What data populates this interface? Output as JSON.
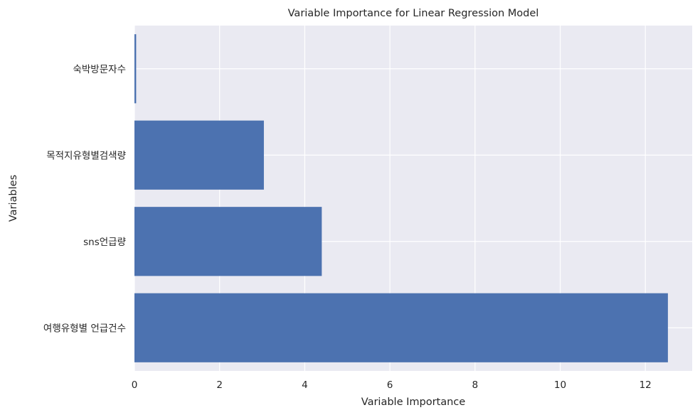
{
  "chart_data": {
    "type": "bar",
    "orientation": "horizontal",
    "title": "Variable Importance for Linear Regression Model",
    "xlabel": "Variable Importance",
    "ylabel": "Variables",
    "categories": [
      "여행유형별 언급건수",
      "sns언급량",
      "목적지유형별검색량",
      "숙박방문자수"
    ],
    "values": [
      12.53,
      4.4,
      3.04,
      0.04
    ],
    "xlim": [
      0,
      13.1
    ],
    "xticks": [
      "0",
      "2",
      "4",
      "6",
      "8",
      "10",
      "12"
    ],
    "grid": true,
    "colors": {
      "bar": "#4c72b0",
      "plot_background": "#eaeaf2",
      "grid": "#ffffff"
    }
  }
}
